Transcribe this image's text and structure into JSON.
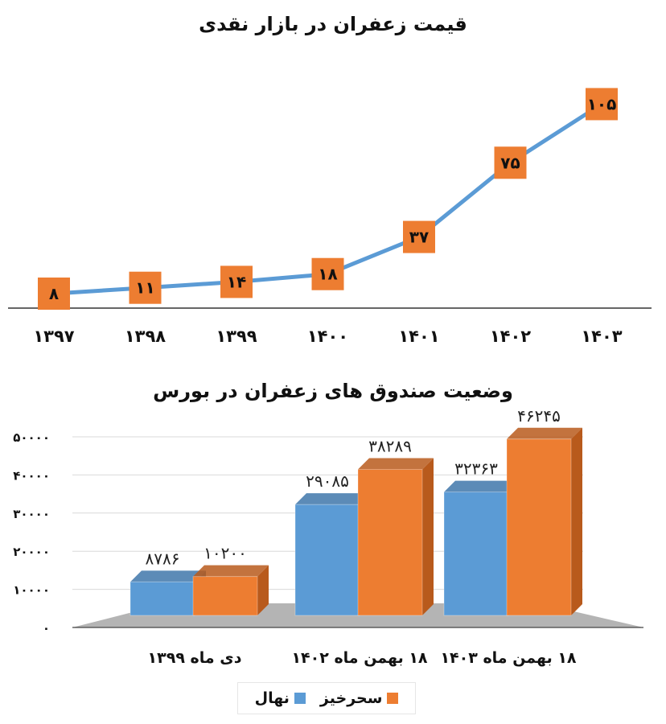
{
  "chart_data": [
    {
      "type": "line",
      "title": "قیمت زعفران در بازار نقدی",
      "categories": [
        "۱۳۹۷",
        "۱۳۹۸",
        "۱۳۹۹",
        "۱۴۰۰",
        "۱۴۰۱",
        "۱۴۰۲",
        "۱۴۰۳"
      ],
      "values": [
        8,
        11,
        14,
        18,
        37,
        75,
        105
      ],
      "value_labels": [
        "۸",
        "۱۱",
        "۱۴",
        "۱۸",
        "۳۷",
        "۷۵",
        "۱۰۵"
      ],
      "ylim": [
        0,
        115
      ],
      "line_color": "#5b9bd5",
      "marker_color": "#ed7d31",
      "grid": false
    },
    {
      "type": "bar",
      "title": "وضعیت صندوق های زعفران در بورس",
      "categories": [
        "دی ماه ۱۳۹۹",
        "۱۸ بهمن ماه ۱۴۰۲",
        "۱۸ بهمن ماه ۱۴۰۳"
      ],
      "ylim": [
        0,
        50000
      ],
      "yticks": [
        0,
        10000,
        20000,
        30000,
        40000,
        50000
      ],
      "ytick_labels": [
        "۰",
        "۱۰۰۰۰",
        "۲۰۰۰۰",
        "۳۰۰۰۰",
        "۴۰۰۰۰",
        "۵۰۰۰۰"
      ],
      "series": [
        {
          "name": "نهال",
          "color": "#5b9bd5",
          "values": [
            8786,
            29085,
            32363
          ],
          "labels": [
            "۸۷۸۶",
            "۲۹۰۸۵",
            "۳۲۳۶۳"
          ]
        },
        {
          "name": "سحرخیز",
          "color": "#ed7d31",
          "values": [
            10200,
            38289,
            46245
          ],
          "labels": [
            "۱۰۲۰۰",
            "۳۸۲۸۹",
            "۴۶۲۴۵"
          ]
        }
      ],
      "legend_position": "bottom"
    }
  ]
}
